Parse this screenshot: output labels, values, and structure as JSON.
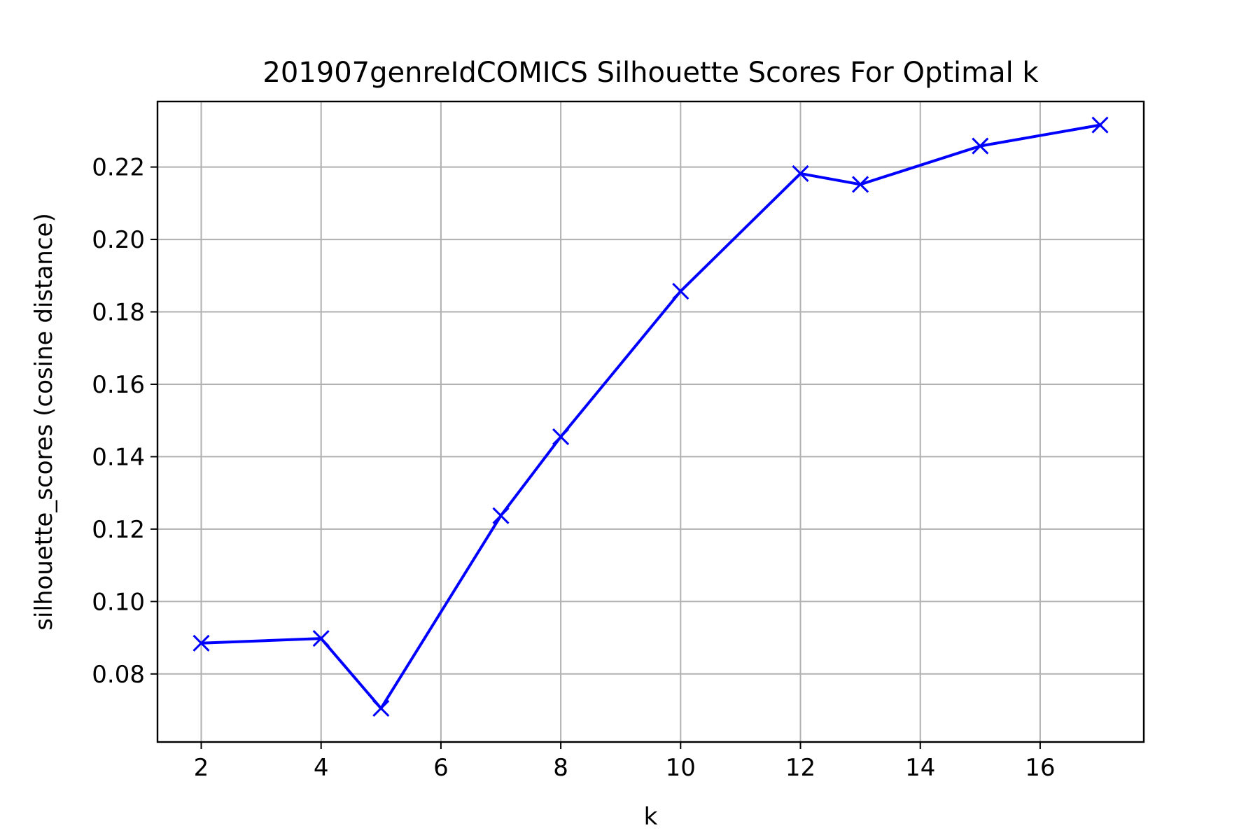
{
  "chart_data": {
    "type": "line",
    "title": "201907genreIdCOMICS Silhouette Scores For Optimal k",
    "xlabel": "k",
    "ylabel": "silhouette_scores (cosine distance)",
    "xlim": [
      1.27,
      17.73
    ],
    "ylim": [
      0.0612,
      0.2381
    ],
    "xticks": [
      2,
      4,
      6,
      8,
      10,
      12,
      14,
      16
    ],
    "yticks": [
      0.08,
      0.1,
      0.12,
      0.14,
      0.16,
      0.18,
      0.2,
      0.22
    ],
    "ytick_labels": [
      "0.08",
      "0.10",
      "0.12",
      "0.14",
      "0.16",
      "0.18",
      "0.20",
      "0.22"
    ],
    "grid": true,
    "marker": "x",
    "series": [
      {
        "color": "#0000ff",
        "x": [
          2,
          4,
          5,
          7,
          8,
          10,
          12,
          13,
          15,
          17
        ],
        "y": [
          0.0885,
          0.0898,
          0.0705,
          0.1237,
          0.1455,
          0.1857,
          0.2182,
          0.2152,
          0.2258,
          0.2316
        ]
      }
    ]
  }
}
